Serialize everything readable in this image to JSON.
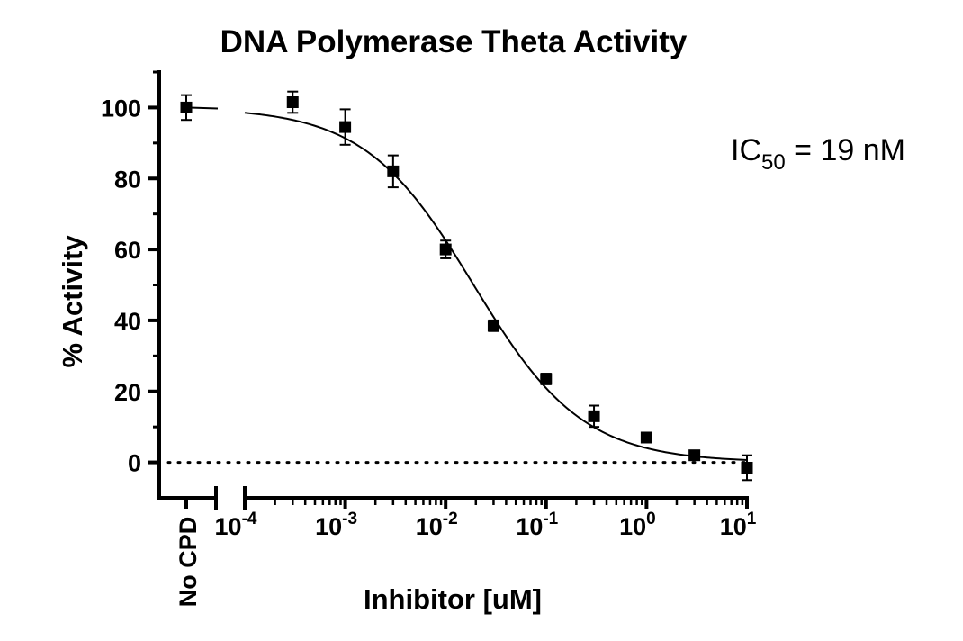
{
  "chart_data": {
    "type": "scatter",
    "title": "DNA Polymerase Theta Activity",
    "xlabel": "Inhibitor [uM]",
    "ylabel": "% Activity",
    "x_scale": "log",
    "xlim": [
      0.0001,
      10
    ],
    "ylim": [
      -10,
      110
    ],
    "y_ticks": [
      "0",
      "20",
      "40",
      "60",
      "80",
      "100"
    ],
    "x_ticks": [
      {
        "base": "10",
        "exp": "-4",
        "value": 0.0001
      },
      {
        "base": "10",
        "exp": "-3",
        "value": 0.001
      },
      {
        "base": "10",
        "exp": "-2",
        "value": 0.01
      },
      {
        "base": "10",
        "exp": "-1",
        "value": 0.1
      },
      {
        "base": "10",
        "exp": "0",
        "value": 1
      },
      {
        "base": "10",
        "exp": "1",
        "value": 10
      }
    ],
    "control": {
      "label": "No CPD",
      "y": 100,
      "err": 3.5
    },
    "points": [
      {
        "x": 0.0003,
        "y": 101.5,
        "err": 3
      },
      {
        "x": 0.001,
        "y": 94.5,
        "err": 5
      },
      {
        "x": 0.003,
        "y": 82,
        "err": 4.5
      },
      {
        "x": 0.01,
        "y": 60,
        "err": 2.5
      },
      {
        "x": 0.03,
        "y": 38.5,
        "err": 1.5
      },
      {
        "x": 0.1,
        "y": 23.5,
        "err": 1.5
      },
      {
        "x": 0.3,
        "y": 13,
        "err": 3
      },
      {
        "x": 1,
        "y": 7,
        "err": 1
      },
      {
        "x": 3,
        "y": 2,
        "err": 1
      },
      {
        "x": 10,
        "y": -1.5,
        "err": 3.5
      }
    ],
    "fit": {
      "top": 100,
      "bottom": 0,
      "ic50": 0.019,
      "hill": 0.8
    },
    "baseline_y": 0,
    "annotation": {
      "prefix": "IC",
      "subscript": "50",
      "suffix": " = 19 nM"
    },
    "grid": false,
    "legend": "none"
  }
}
